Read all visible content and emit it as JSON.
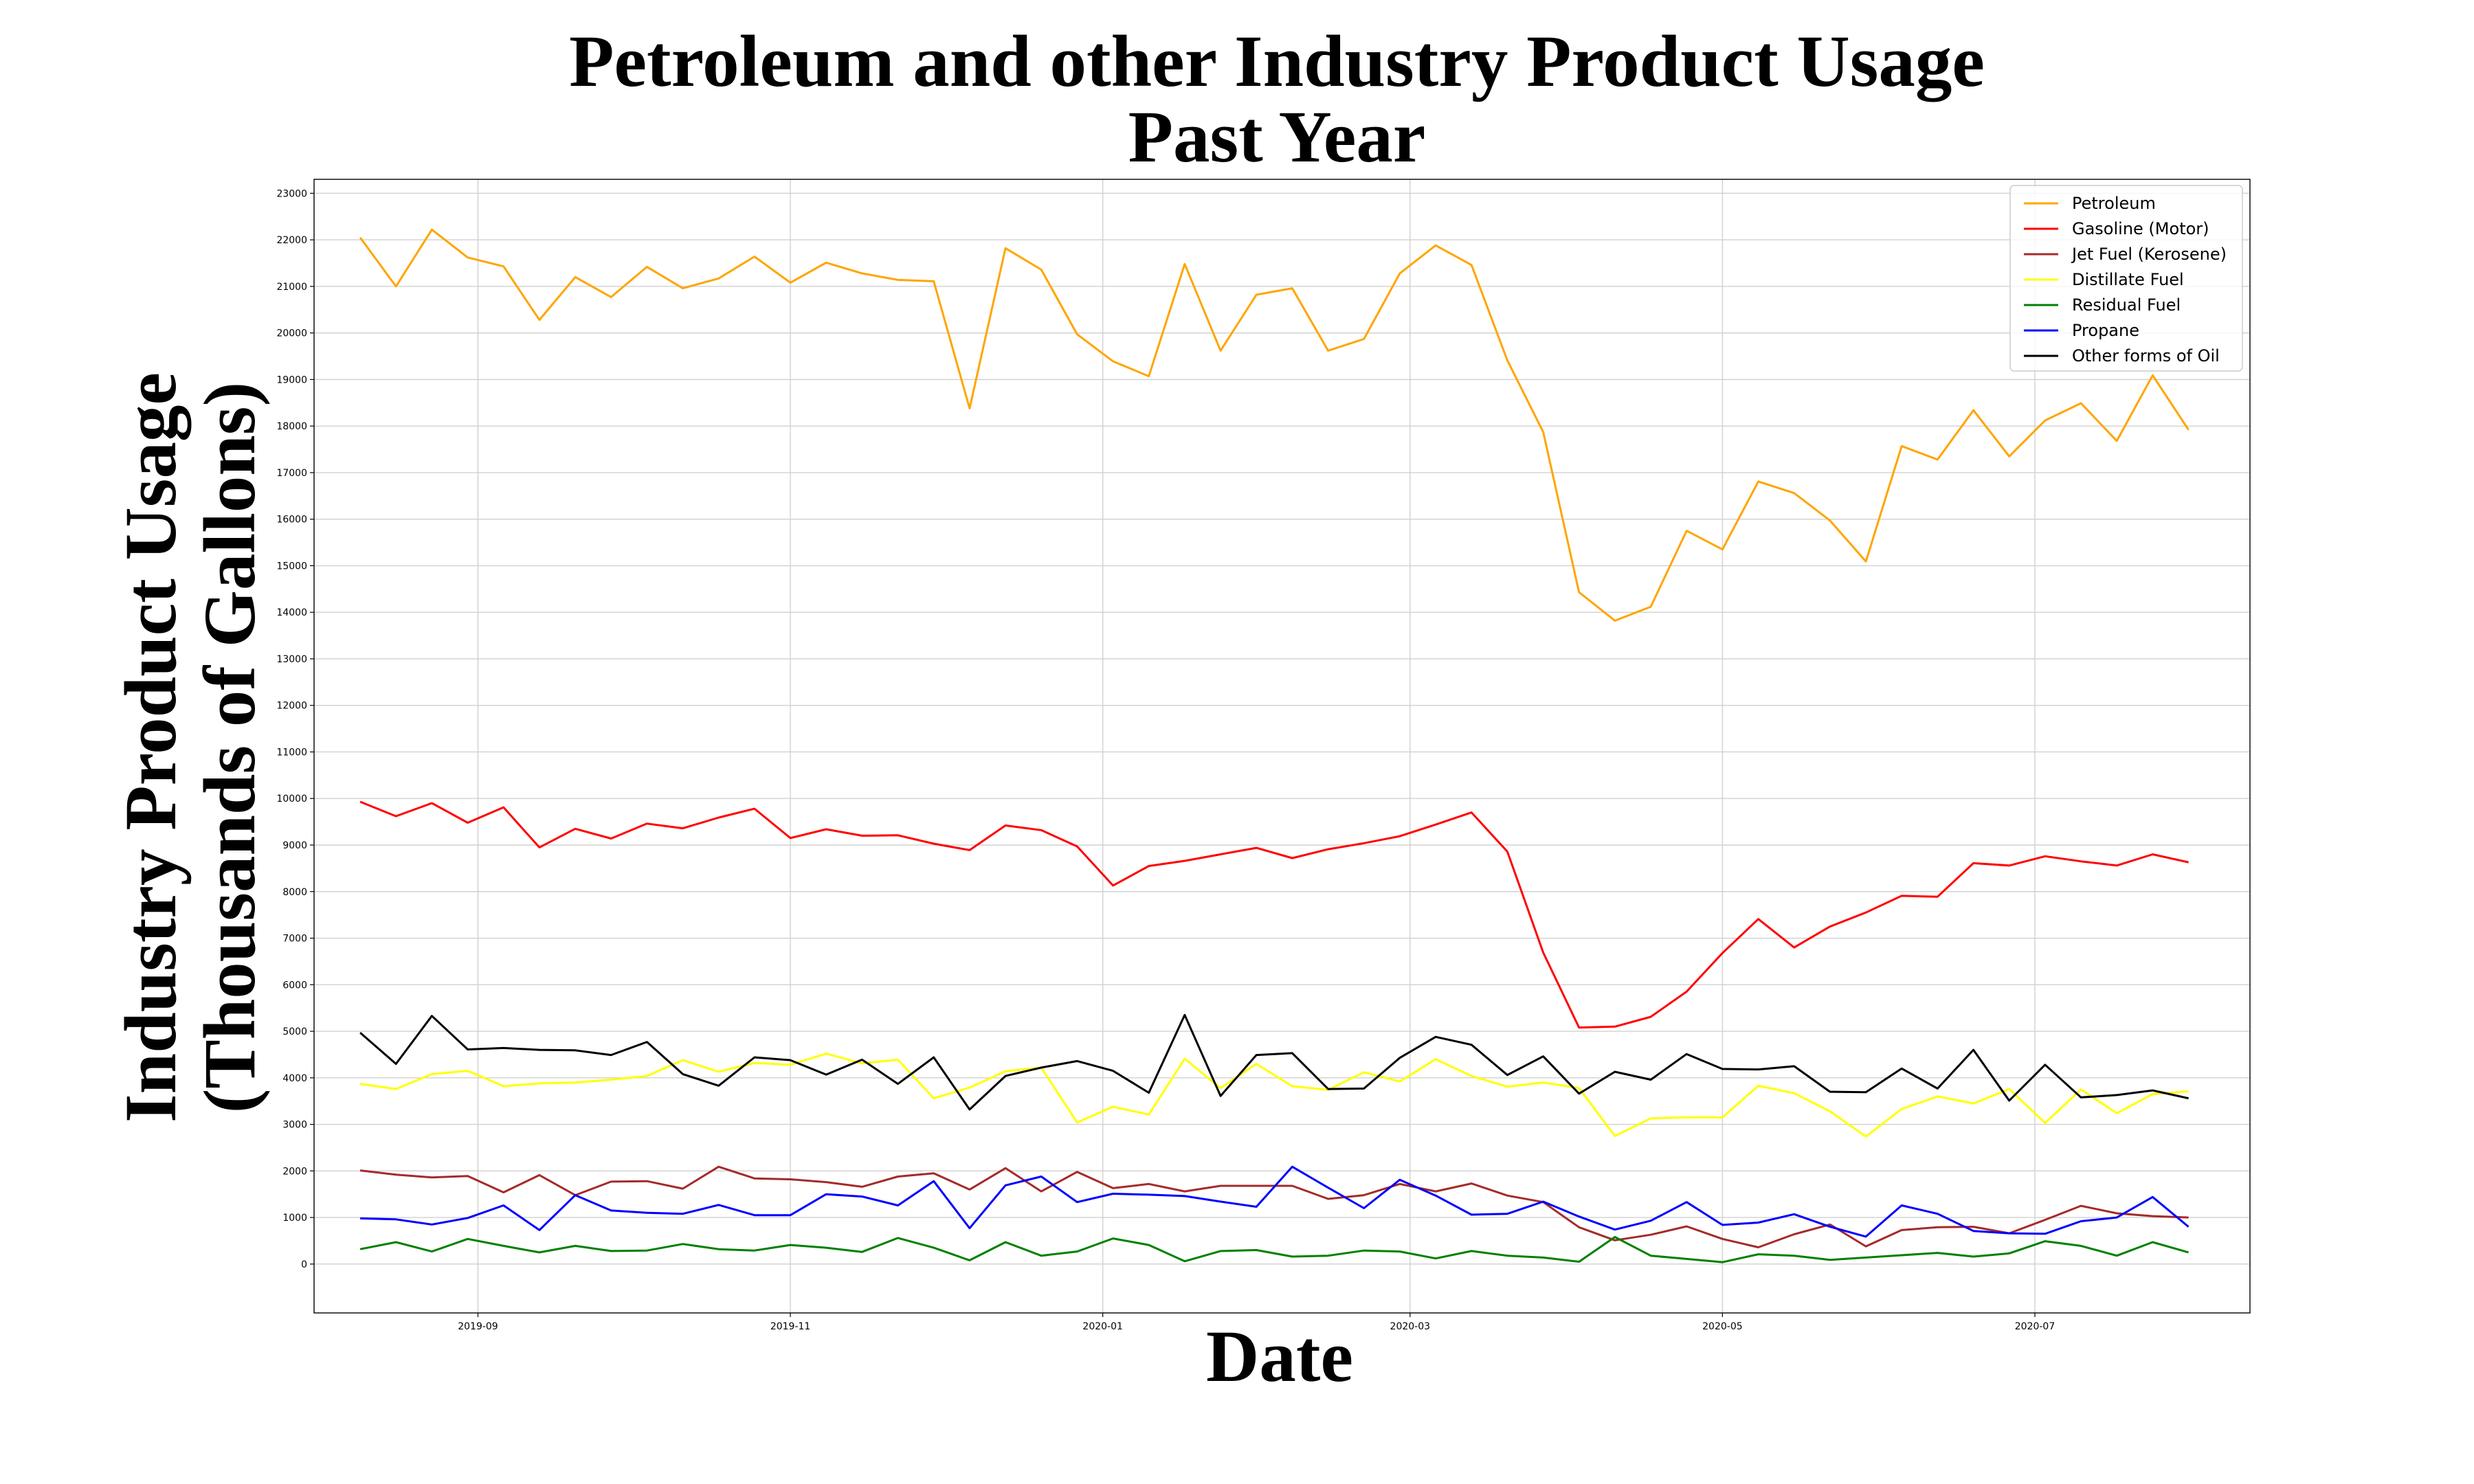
{
  "chart_data": {
    "type": "line",
    "title": "Petroleum and other Industry Product Usage",
    "subtitle": "Past Year",
    "xlabel": "Date",
    "ylabel": "Industry Product Usage",
    "ylabel2": "(Thousands of Gallons)",
    "ylim": [
      -1050,
      23300
    ],
    "xlim": [
      "2019-07-31",
      "2020-08-12"
    ],
    "grid": true,
    "legend_position": "top-right",
    "y_ticks": [
      0,
      1000,
      2000,
      3000,
      4000,
      5000,
      6000,
      7000,
      8000,
      9000,
      10000,
      11000,
      12000,
      13000,
      14000,
      15000,
      16000,
      17000,
      18000,
      19000,
      20000,
      21000,
      22000,
      23000
    ],
    "x_ticks": [
      {
        "date": "2019-09-01",
        "label": "2019-09"
      },
      {
        "date": "2019-11-01",
        "label": "2019-11"
      },
      {
        "date": "2020-01-01",
        "label": "2020-01"
      },
      {
        "date": "2020-03-01",
        "label": "2020-03"
      },
      {
        "date": "2020-05-01",
        "label": "2020-05"
      },
      {
        "date": "2020-07-01",
        "label": "2020-07"
      }
    ],
    "x": [
      "2019-08-09",
      "2019-08-16",
      "2019-08-23",
      "2019-08-30",
      "2019-09-06",
      "2019-09-13",
      "2019-09-20",
      "2019-09-27",
      "2019-10-04",
      "2019-10-11",
      "2019-10-18",
      "2019-10-25",
      "2019-11-01",
      "2019-11-08",
      "2019-11-15",
      "2019-11-22",
      "2019-11-29",
      "2019-12-06",
      "2019-12-13",
      "2019-12-20",
      "2019-12-27",
      "2020-01-03",
      "2020-01-10",
      "2020-01-17",
      "2020-01-24",
      "2020-01-31",
      "2020-02-07",
      "2020-02-14",
      "2020-02-21",
      "2020-02-28",
      "2020-03-06",
      "2020-03-13",
      "2020-03-20",
      "2020-03-27",
      "2020-04-03",
      "2020-04-10",
      "2020-04-17",
      "2020-04-24",
      "2020-05-01",
      "2020-05-08",
      "2020-05-15",
      "2020-05-22",
      "2020-05-29",
      "2020-06-05",
      "2020-06-12",
      "2020-06-19",
      "2020-06-26",
      "2020-07-03",
      "2020-07-10",
      "2020-07-17",
      "2020-07-24",
      "2020-07-31"
    ],
    "series": [
      {
        "name": "Petroleum",
        "color": "#FFA500",
        "values": [
          22050,
          21000,
          22220,
          21620,
          21430,
          20280,
          21200,
          20770,
          21420,
          20960,
          21170,
          21640,
          21080,
          21510,
          21280,
          21140,
          21110,
          18380,
          21820,
          21360,
          19970,
          19390,
          19070,
          21480,
          19620,
          20820,
          20960,
          19620,
          19870,
          21280,
          21880,
          21460,
          19410,
          17870,
          14430,
          13820,
          14120,
          15750,
          15350,
          16810,
          16560,
          15970,
          15090,
          17570,
          17280,
          18340,
          17350,
          18120,
          18490,
          17680,
          19090,
          17920
        ]
      },
      {
        "name": "Gasoline (Motor)",
        "color": "#FF0000",
        "values": [
          9930,
          9620,
          9900,
          9480,
          9810,
          8950,
          9350,
          9140,
          9460,
          9360,
          9590,
          9780,
          9150,
          9340,
          9200,
          9210,
          9030,
          8890,
          9420,
          9320,
          8970,
          8130,
          8550,
          8660,
          8800,
          8940,
          8720,
          8910,
          9040,
          9190,
          9440,
          9700,
          8860,
          6690,
          5080,
          5100,
          5310,
          5850,
          6680,
          7410,
          6800,
          7250,
          7550,
          7910,
          7890,
          8610,
          8560,
          8760,
          8650,
          8560,
          8800,
          8630
        ]
      },
      {
        "name": "Jet Fuel (Kerosene)",
        "color": "#A52A2A",
        "values": [
          2010,
          1920,
          1860,
          1890,
          1540,
          1910,
          1480,
          1770,
          1780,
          1620,
          2090,
          1840,
          1820,
          1760,
          1660,
          1880,
          1950,
          1600,
          2060,
          1560,
          1980,
          1630,
          1720,
          1560,
          1680,
          1680,
          1680,
          1400,
          1480,
          1720,
          1560,
          1730,
          1470,
          1330,
          790,
          510,
          630,
          810,
          540,
          360,
          640,
          850,
          380,
          730,
          790,
          800,
          660,
          950,
          1250,
          1090,
          1030,
          1000
        ]
      },
      {
        "name": "Distillate Fuel",
        "color": "#FFFF00",
        "values": [
          3870,
          3760,
          4080,
          4150,
          3820,
          3880,
          3900,
          3960,
          4040,
          4380,
          4130,
          4320,
          4280,
          4520,
          4310,
          4390,
          3560,
          3790,
          4140,
          4220,
          3040,
          3380,
          3210,
          4410,
          3780,
          4300,
          3820,
          3740,
          4120,
          3920,
          4400,
          4040,
          3810,
          3900,
          3780,
          2750,
          3130,
          3150,
          3150,
          3830,
          3670,
          3280,
          2740,
          3330,
          3600,
          3450,
          3760,
          3030,
          3750,
          3240,
          3650,
          3710
        ]
      },
      {
        "name": "Residual Fuel",
        "color": "#008000",
        "values": [
          320,
          470,
          270,
          540,
          390,
          250,
          390,
          280,
          290,
          430,
          320,
          290,
          410,
          350,
          260,
          560,
          350,
          80,
          470,
          180,
          270,
          550,
          410,
          60,
          280,
          300,
          160,
          180,
          290,
          270,
          120,
          280,
          180,
          140,
          50,
          580,
          180,
          110,
          40,
          210,
          180,
          90,
          140,
          190,
          240,
          160,
          230,
          490,
          390,
          180,
          470,
          250
        ]
      },
      {
        "name": "Propane",
        "color": "#0000FF",
        "values": [
          980,
          960,
          850,
          990,
          1260,
          730,
          1480,
          1150,
          1100,
          1080,
          1270,
          1050,
          1050,
          1500,
          1450,
          1260,
          1780,
          770,
          1690,
          1880,
          1330,
          1510,
          1490,
          1460,
          1340,
          1230,
          2090,
          1640,
          1200,
          1810,
          1470,
          1060,
          1080,
          1340,
          1020,
          740,
          930,
          1330,
          840,
          890,
          1070,
          800,
          590,
          1260,
          1080,
          710,
          660,
          650,
          920,
          1000,
          1440,
          800
        ]
      },
      {
        "name": "Other forms of Oil",
        "color": "#000000",
        "values": [
          4970,
          4300,
          5330,
          4610,
          4640,
          4600,
          4590,
          4490,
          4770,
          4080,
          3830,
          4440,
          4380,
          4070,
          4390,
          3870,
          4440,
          3320,
          4040,
          4220,
          4360,
          4150,
          3680,
          5350,
          3610,
          4490,
          4530,
          3760,
          3770,
          4430,
          4880,
          4710,
          4060,
          4460,
          3660,
          4130,
          3960,
          4510,
          4190,
          4180,
          4250,
          3700,
          3690,
          4200,
          3770,
          4600,
          3510,
          4280,
          3580,
          3630,
          3730,
          3560
        ]
      }
    ]
  }
}
